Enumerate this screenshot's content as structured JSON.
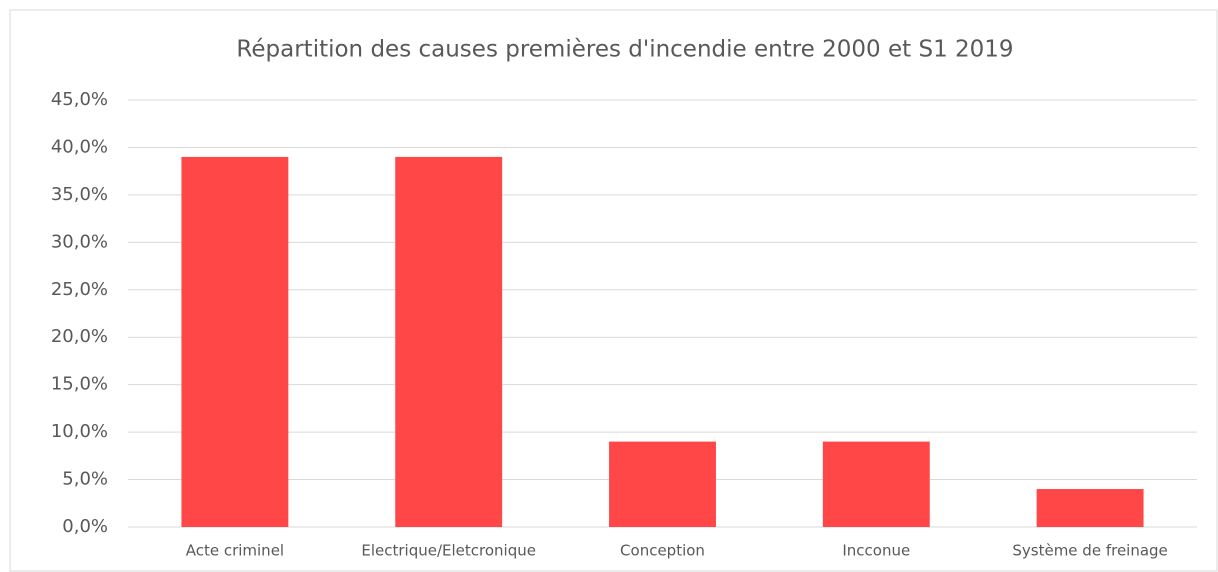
{
  "chart_data": {
    "type": "bar",
    "title": "Répartition des causes premières d'incendie entre 2000 et S1 2019",
    "categories": [
      "Acte criminel",
      "Electrique/Eletcronique",
      "Conception",
      "Incconue",
      "Système de freinage"
    ],
    "values": [
      39,
      39,
      9,
      9,
      4
    ],
    "color": "#ff4747",
    "ylim": [
      0,
      45
    ],
    "yticks": [
      {
        "value": 0,
        "label": "0,0%"
      },
      {
        "value": 5,
        "label": "5,0%"
      },
      {
        "value": 10,
        "label": "10,0%"
      },
      {
        "value": 15,
        "label": "15,0%"
      },
      {
        "value": 20,
        "label": "20,0%"
      },
      {
        "value": 25,
        "label": "25,0%"
      },
      {
        "value": 30,
        "label": "30,0%"
      },
      {
        "value": 35,
        "label": "35,0%"
      },
      {
        "value": 40,
        "label": "40,0%"
      },
      {
        "value": 45,
        "label": "45,0%"
      }
    ],
    "grid": true
  }
}
